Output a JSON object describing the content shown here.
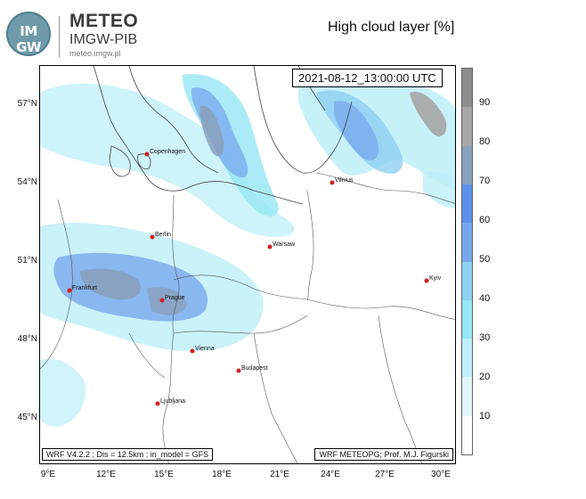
{
  "header": {
    "logo_text": "IM GW",
    "brand_name": "METEO",
    "brand_sub": "IMGW-PIB",
    "brand_url": "meteo.imgw.pl",
    "map_title": "High cloud layer [%]"
  },
  "map": {
    "timestamp": "2021-08-12_13:00:00 UTC",
    "model_note": "WRF V4.2.2 ; Dis = 12.5km ; in_model = GFS",
    "credit_note": "WRF METEOPG; Prof. M.J. Figurski",
    "lat_labels": [
      "57°N",
      "54°N",
      "51°N",
      "48°N",
      "45°N"
    ],
    "lon_labels": [
      "9°E",
      "12°E",
      "15°E",
      "18°E",
      "21°E",
      "24°E",
      "27°E",
      "30°E"
    ],
    "cities": [
      {
        "name": "Copenhagen"
      },
      {
        "name": "Vilnius"
      },
      {
        "name": "Berlin"
      },
      {
        "name": "Warsaw"
      },
      {
        "name": "Frankfurt"
      },
      {
        "name": "Prague"
      },
      {
        "name": "Kyiv"
      },
      {
        "name": "Vienna"
      },
      {
        "name": "Budapest"
      },
      {
        "name": "Ljubljana"
      }
    ],
    "city_color": "#d42020"
  },
  "colorbar": {
    "labels": [
      "90",
      "80",
      "70",
      "60",
      "50",
      "40",
      "30",
      "20",
      "10"
    ],
    "colors": [
      "#ffffff",
      "#e1f6fb",
      "#bdeff8",
      "#96e6f4",
      "#8fd0f2",
      "#78a7ee",
      "#5a90e8",
      "#8a9fbb",
      "#a5a5a5",
      "#8c8c8c"
    ]
  }
}
